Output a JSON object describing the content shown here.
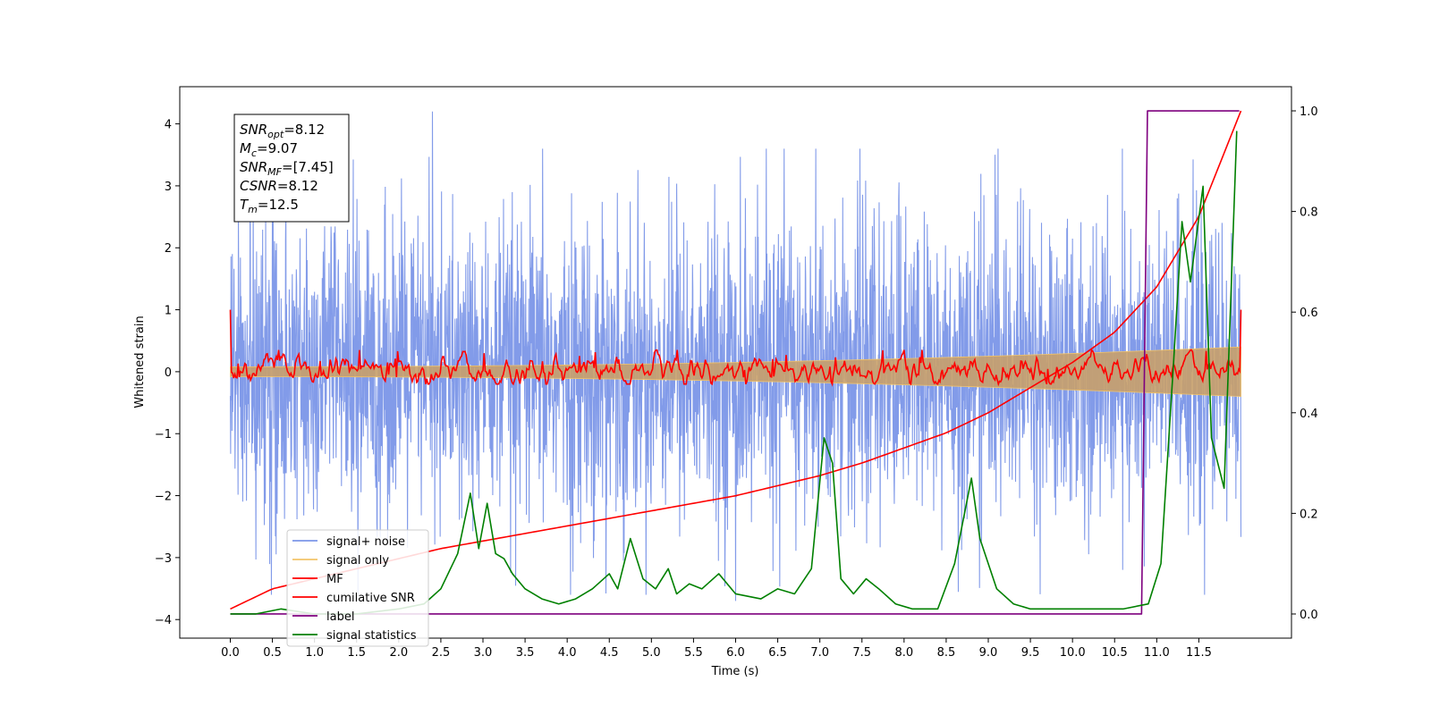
{
  "chart_data": {
    "type": "line",
    "xlabel": "Time (s)",
    "ylabel": "Whitened strain",
    "xlim": [
      -0.6,
      12.6
    ],
    "ylim": [
      -4.3,
      4.6
    ],
    "y2lim": [
      -0.048,
      1.048
    ],
    "x_ticks": [
      0.0,
      0.5,
      1.0,
      1.5,
      2.0,
      2.5,
      3.0,
      3.5,
      4.0,
      4.5,
      5.0,
      5.5,
      6.0,
      6.5,
      7.0,
      7.5,
      8.0,
      8.5,
      9.0,
      9.5,
      10.0,
      10.5,
      11.0,
      11.5
    ],
    "x_tick_labels": [
      "0.0",
      "0.5",
      "1.0",
      "1.5",
      "2.0",
      "2.5",
      "3.0",
      "3.5",
      "4.0",
      "4.5",
      "5.0",
      "5.5",
      "6.0",
      "6.5",
      "7.0",
      "7.5",
      "8.0",
      "8.5",
      "9.0",
      "9.5",
      "10.0",
      "10.5",
      "11.0",
      "11.5"
    ],
    "y_ticks": [
      -4,
      -3,
      -2,
      -1,
      0,
      1,
      2,
      3,
      4
    ],
    "y_tick_labels": [
      "−4",
      "−3",
      "−2",
      "−1",
      "0",
      "1",
      "2",
      "3",
      "4"
    ],
    "y2_ticks": [
      0.0,
      0.2,
      0.4,
      0.6,
      0.8,
      1.0
    ],
    "y2_tick_labels": [
      "0.0",
      "0.2",
      "0.4",
      "0.6",
      "0.8",
      "1.0"
    ],
    "grid": false,
    "legend_position": "lower-left",
    "annotation": {
      "lines": [
        {
          "base": "SNR",
          "sub": "opt",
          "value": "=8.12"
        },
        {
          "base": "M",
          "sub": "c",
          "value": "=9.07"
        },
        {
          "base": "SNR",
          "sub": "MF",
          "value": "=[7.45]"
        },
        {
          "base": "CSNR",
          "sub": "",
          "value": "=8.12"
        },
        {
          "base": "T",
          "sub": "m",
          "value": "=12.5"
        }
      ]
    },
    "series": [
      {
        "name": "signal+ noise",
        "color": "#7b96e8",
        "axis": "left",
        "kind": "noise",
        "t_range": [
          0.0,
          12.0
        ],
        "amplitude_envelope": 2.5,
        "peak_extremes": [
          4.2,
          -3.7
        ]
      },
      {
        "name": "signal only",
        "color": "#f2c46a",
        "axis": "left",
        "kind": "chirp",
        "t_range": [
          0.0,
          12.0
        ],
        "amplitude_start": 0.08,
        "amplitude_end": 0.4
      },
      {
        "name": "MF",
        "color": "#ff0000",
        "axis": "left",
        "kind": "filter_output",
        "t_range": [
          0.0,
          12.0
        ],
        "start_value": 1.0,
        "end_value": 1.0,
        "baseline_range": [
          -0.2,
          0.35
        ]
      },
      {
        "name": "cumilative SNR",
        "color": "#ff0000",
        "axis": "right",
        "x": [
          0.0,
          0.5,
          1.0,
          1.5,
          2.0,
          2.5,
          3.0,
          3.5,
          4.0,
          4.5,
          5.0,
          5.5,
          6.0,
          6.5,
          7.0,
          7.5,
          8.0,
          8.5,
          9.0,
          9.5,
          10.0,
          10.5,
          11.0,
          11.5,
          12.0
        ],
        "y": [
          0.01,
          0.05,
          0.07,
          0.09,
          0.11,
          0.13,
          0.145,
          0.16,
          0.175,
          0.19,
          0.205,
          0.22,
          0.235,
          0.255,
          0.275,
          0.3,
          0.33,
          0.36,
          0.4,
          0.45,
          0.5,
          0.56,
          0.65,
          0.79,
          1.0
        ]
      },
      {
        "name": "label",
        "color": "#7f007f",
        "axis": "right",
        "x": [
          0.0,
          10.82,
          10.89,
          11.98
        ],
        "y": [
          0.0,
          0.0,
          1.0,
          1.0
        ]
      },
      {
        "name": "signal statistics",
        "color": "#008000",
        "axis": "right",
        "x": [
          0.0,
          0.3,
          0.6,
          1.0,
          1.5,
          2.0,
          2.3,
          2.5,
          2.7,
          2.85,
          2.95,
          3.05,
          3.15,
          3.25,
          3.35,
          3.5,
          3.7,
          3.9,
          4.1,
          4.3,
          4.5,
          4.6,
          4.75,
          4.9,
          5.05,
          5.2,
          5.3,
          5.45,
          5.6,
          5.8,
          6.0,
          6.3,
          6.5,
          6.7,
          6.9,
          7.05,
          7.15,
          7.25,
          7.4,
          7.55,
          7.7,
          7.9,
          8.1,
          8.4,
          8.6,
          8.8,
          8.9,
          9.1,
          9.3,
          9.5,
          9.8,
          10.2,
          10.6,
          10.9,
          11.05,
          11.2,
          11.3,
          11.4,
          11.55,
          11.65,
          11.8,
          11.95
        ],
        "y": [
          0.0,
          0.0,
          0.01,
          0.0,
          0.0,
          0.01,
          0.02,
          0.05,
          0.12,
          0.24,
          0.13,
          0.22,
          0.12,
          0.11,
          0.08,
          0.05,
          0.03,
          0.02,
          0.03,
          0.05,
          0.08,
          0.05,
          0.15,
          0.07,
          0.05,
          0.09,
          0.04,
          0.06,
          0.05,
          0.08,
          0.04,
          0.03,
          0.05,
          0.04,
          0.09,
          0.35,
          0.3,
          0.07,
          0.04,
          0.07,
          0.05,
          0.02,
          0.01,
          0.01,
          0.1,
          0.27,
          0.15,
          0.05,
          0.02,
          0.01,
          0.01,
          0.01,
          0.01,
          0.02,
          0.1,
          0.5,
          0.78,
          0.66,
          0.85,
          0.35,
          0.25,
          0.96
        ]
      }
    ]
  }
}
